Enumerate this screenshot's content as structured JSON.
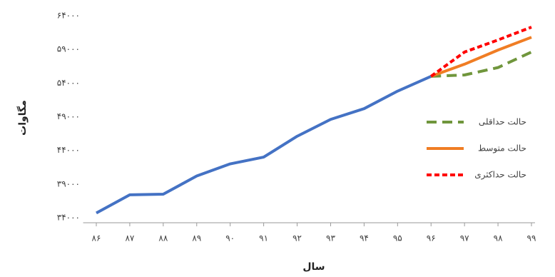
{
  "chart_data": {
    "type": "line",
    "y_label": "مگاوات",
    "x_label": "سال",
    "categories": [
      "۸۶",
      "۸۷",
      "۸۸",
      "۸۹",
      "۹۰",
      "۹۱",
      "۹۲",
      "۹۳",
      "۹۴",
      "۹۵",
      "۹۶",
      "۹۷",
      "۹۸",
      "۹۹"
    ],
    "series": [
      {
        "name": null,
        "color": "#4472c4",
        "line_style": "solid",
        "values": [
          34700,
          37400,
          37500,
          40200,
          42000,
          43000,
          46100,
          48600,
          50200,
          52800,
          55000,
          null,
          null,
          null
        ]
      },
      {
        "name": "حالت حداقلی",
        "color": "#70963c",
        "line_style": "dashed",
        "values": [
          null,
          null,
          null,
          null,
          null,
          null,
          null,
          null,
          null,
          null,
          55000,
          55200,
          56300,
          58600
        ]
      },
      {
        "name": "حالت متوسط",
        "color": "#f07d24",
        "line_style": "solid",
        "values": [
          null,
          null,
          null,
          null,
          null,
          null,
          null,
          null,
          null,
          null,
          55000,
          56800,
          58900,
          60800
        ]
      },
      {
        "name": "حالت حداکثری",
        "color": "#ff0000",
        "line_style": "short-dashed",
        "values": [
          null,
          null,
          null,
          null,
          null,
          null,
          null,
          null,
          null,
          null,
          55000,
          58600,
          60400,
          62300
        ]
      }
    ],
    "ylim": [
      34000,
      64000
    ],
    "yticks": [
      {
        "value": 34000,
        "label": "۳۴۰۰۰"
      },
      {
        "value": 39000,
        "label": "۳۹۰۰۰"
      },
      {
        "value": 44000,
        "label": "۴۴۰۰۰"
      },
      {
        "value": 49000,
        "label": "۴۹۰۰۰"
      },
      {
        "value": 54000,
        "label": "۵۴۰۰۰"
      },
      {
        "value": 59000,
        "label": "۵۹۰۰۰"
      },
      {
        "value": 64000,
        "label": "۶۴۰۰۰"
      }
    ],
    "grid": false,
    "legend": "right"
  }
}
